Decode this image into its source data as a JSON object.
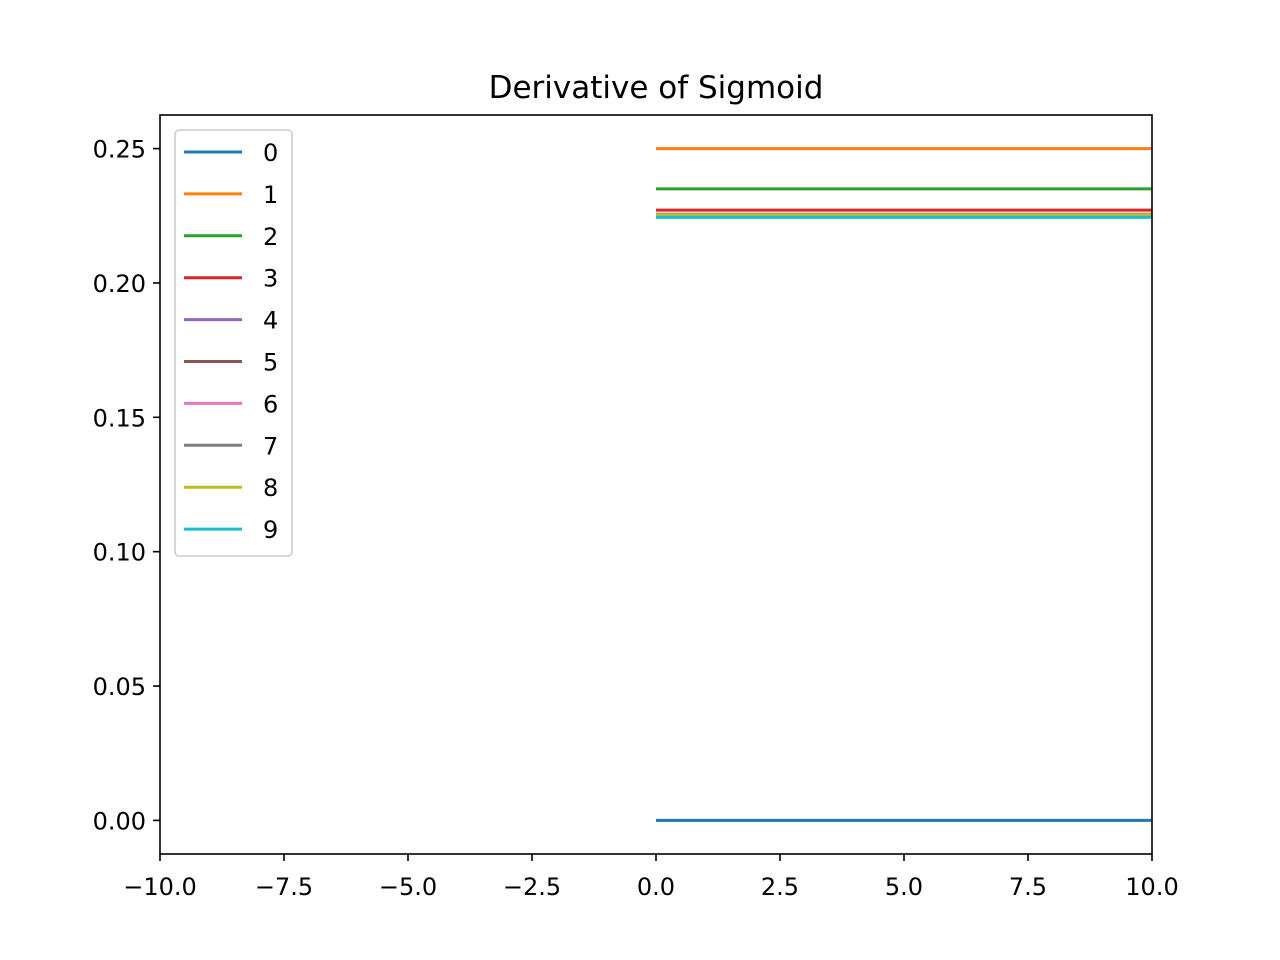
{
  "chart_data": {
    "type": "line",
    "title": "Derivative of Sigmoid",
    "xlabel": "",
    "ylabel": "",
    "xlim": [
      -10,
      10
    ],
    "ylim": [
      -0.0125,
      0.2625
    ],
    "x_ticks": [
      -10,
      -7.5,
      -5,
      -2.5,
      0,
      2.5,
      5,
      7.5,
      10
    ],
    "x_tick_labels": [
      "−10.0",
      "−7.5",
      "−5.0",
      "−2.5",
      "0.0",
      "2.5",
      "5.0",
      "7.5",
      "10.0"
    ],
    "y_ticks": [
      0,
      0.05,
      0.1,
      0.15,
      0.2,
      0.25
    ],
    "y_tick_labels": [
      "0.00",
      "0.05",
      "0.10",
      "0.15",
      "0.20",
      "0.25"
    ],
    "grid": false,
    "legend_position": "upper-left",
    "series": [
      {
        "name": "0",
        "color": "#1f77b4",
        "x": [
          0,
          10
        ],
        "y": [
          0.0,
          0.0
        ]
      },
      {
        "name": "1",
        "color": "#ff7f0e",
        "x": [
          0,
          10
        ],
        "y": [
          0.25,
          0.25
        ]
      },
      {
        "name": "2",
        "color": "#2ca02c",
        "x": [
          0,
          10
        ],
        "y": [
          0.235,
          0.235
        ]
      },
      {
        "name": "3",
        "color": "#d62728",
        "x": [
          0,
          10
        ],
        "y": [
          0.2271,
          0.2271
        ]
      },
      {
        "name": "4",
        "color": "#9467bd",
        "x": [
          0,
          10
        ],
        "y": [
          0.2256,
          0.2256
        ]
      },
      {
        "name": "5",
        "color": "#8c564b",
        "x": [
          0,
          10
        ],
        "y": [
          0.2254,
          0.2254
        ]
      },
      {
        "name": "6",
        "color": "#e377c2",
        "x": [
          0,
          10
        ],
        "y": [
          0.2254,
          0.2254
        ]
      },
      {
        "name": "7",
        "color": "#7f7f7f",
        "x": [
          0,
          10
        ],
        "y": [
          0.2254,
          0.2254
        ]
      },
      {
        "name": "8",
        "color": "#bcbd22",
        "x": [
          0,
          10
        ],
        "y": [
          0.2254,
          0.2254
        ]
      },
      {
        "name": "9",
        "color": "#17becf",
        "x": [
          0,
          10
        ],
        "y": [
          0.2244,
          0.2244
        ]
      }
    ]
  }
}
